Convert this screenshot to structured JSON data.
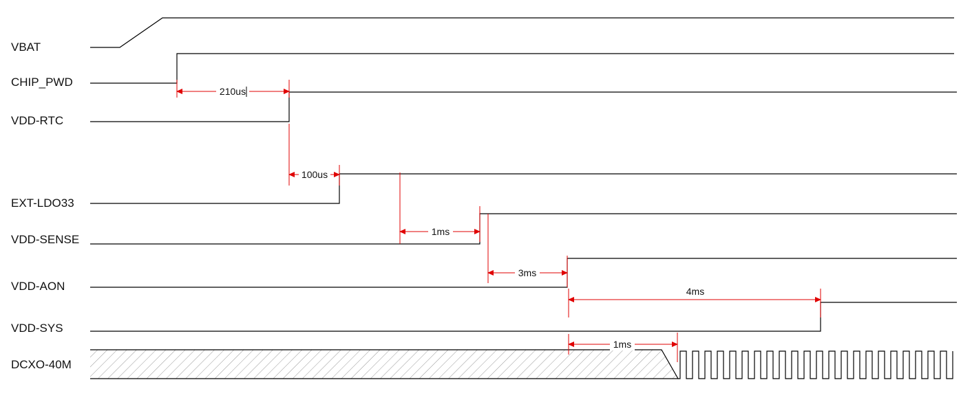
{
  "diagram": {
    "signals": {
      "vbat": "VBAT",
      "chip_pwd": "CHIP_PWD",
      "vdd_rtc": "VDD-RTC",
      "ext_ldo33": "EXT-LDO33",
      "vdd_sense": "VDD-SENSE",
      "vdd_aon": "VDD-AON",
      "vdd_sys": "VDD-SYS",
      "dcxo_40m": "DCXO-40M"
    },
    "delays": {
      "chip_pwd_to_vdd_rtc": "210us",
      "vdd_rtc_to_ext_ldo33": "100us",
      "ext_ldo33_to_vdd_sense": "1ms",
      "vdd_sense_to_vdd_aon": "3ms",
      "vdd_aon_to_vdd_sys": "4ms",
      "vdd_aon_to_dcxo": "1ms"
    },
    "colors": {
      "trace": "#000000",
      "dimension": "#e00000",
      "hatch": "#9a9a9a"
    }
  }
}
